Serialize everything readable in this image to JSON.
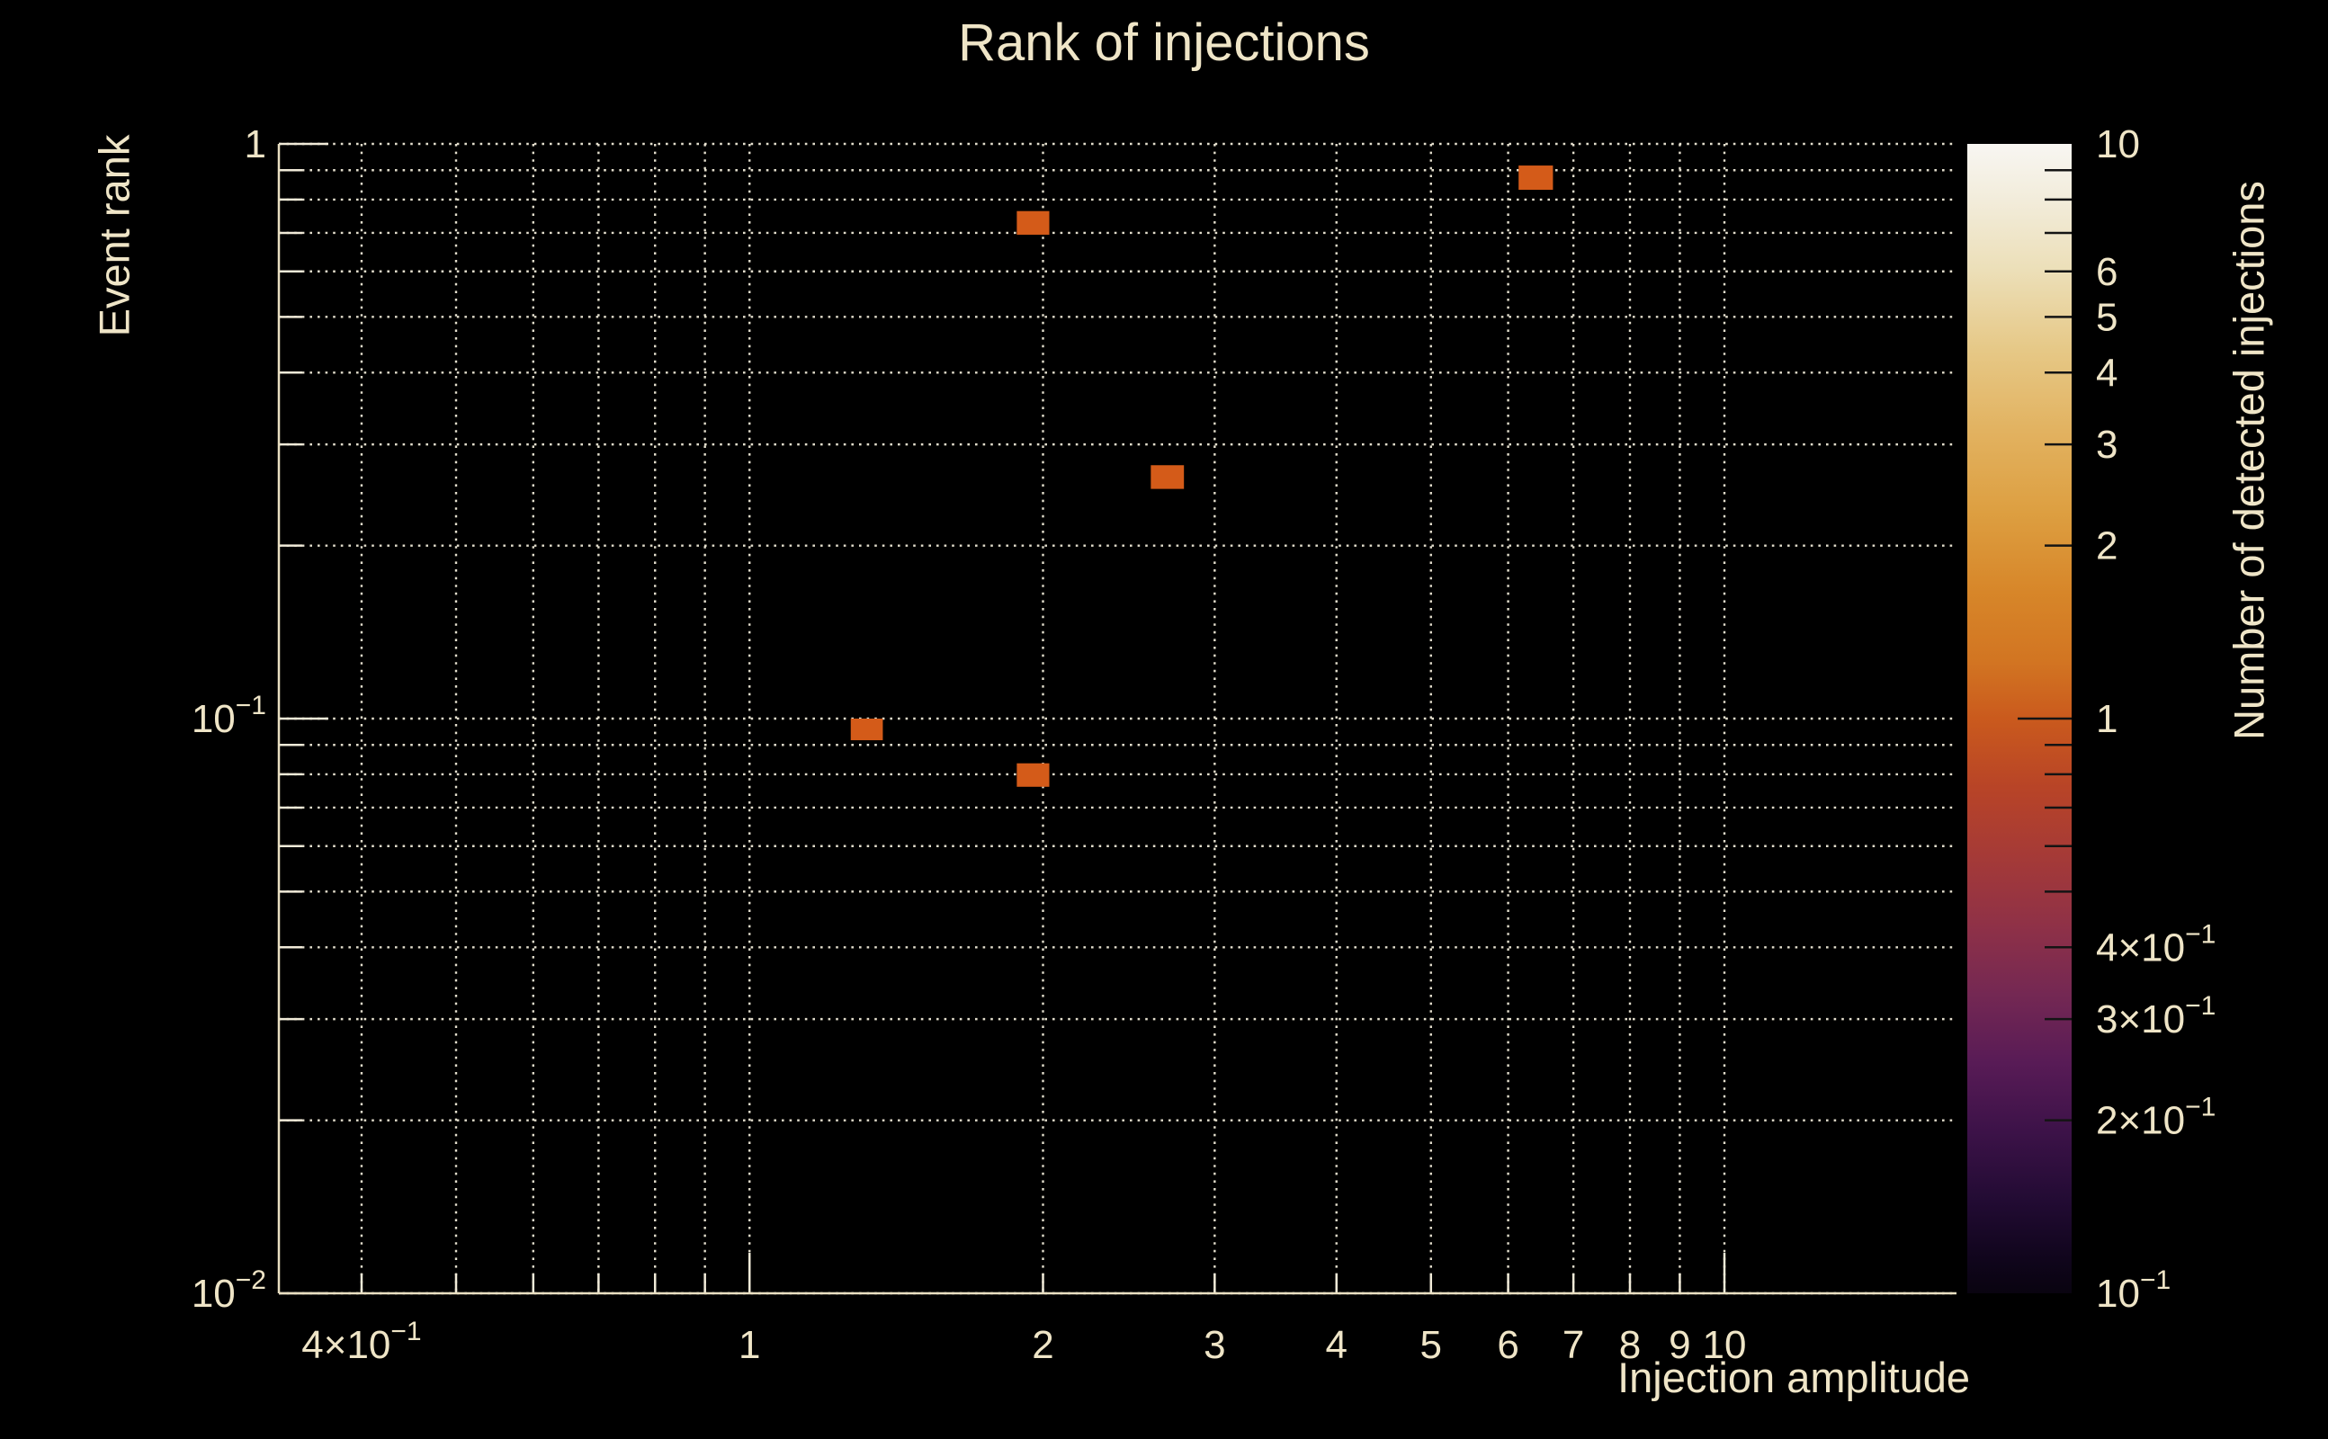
{
  "chart_data": {
    "type": "heatmap",
    "title": "Rank of injections",
    "background_color": "#000000",
    "text_color": "#efe5c7",
    "grid_color": "#f0ead8",
    "axis_color": "#e9dfc2",
    "bin_color": "#d45b19",
    "grid": true,
    "x_axis": {
      "label": "Injection amplitude",
      "scale": "log",
      "min": 0.329,
      "max": 17.3,
      "tick_labels": [
        {
          "v": 0.4,
          "m": "4×10",
          "e": "−1"
        },
        {
          "v": 1,
          "m": "1"
        },
        {
          "v": 2,
          "m": "2"
        },
        {
          "v": 3,
          "m": "3"
        },
        {
          "v": 4,
          "m": "4"
        },
        {
          "v": 5,
          "m": "5"
        },
        {
          "v": 6,
          "m": "6"
        },
        {
          "v": 7,
          "m": "7"
        },
        {
          "v": 8,
          "m": "8"
        },
        {
          "v": 9,
          "m": "9"
        },
        {
          "v": 10,
          "m": "10"
        }
      ]
    },
    "y_axis": {
      "label": "Event rank",
      "scale": "log",
      "min": 0.01,
      "max": 1,
      "tick_labels": [
        {
          "v": 1,
          "m": "1"
        },
        {
          "v": 0.1,
          "m": "10",
          "e": "−1"
        },
        {
          "v": 0.01,
          "m": "10",
          "e": "−2"
        }
      ]
    },
    "colorbar": {
      "label": "Number of detected injections",
      "scale": "log",
      "min": 0.1,
      "max": 10,
      "tick_labels": [
        {
          "v": 10,
          "m": "10"
        },
        {
          "v": 6,
          "m": "6"
        },
        {
          "v": 5,
          "m": "5"
        },
        {
          "v": 4,
          "m": "4"
        },
        {
          "v": 3,
          "m": "3"
        },
        {
          "v": 2,
          "m": "2"
        },
        {
          "v": 1,
          "m": "1"
        },
        {
          "v": 0.4,
          "m": "4×10",
          "e": "−1"
        },
        {
          "v": 0.3,
          "m": "3×10",
          "e": "−1"
        },
        {
          "v": 0.2,
          "m": "2×10",
          "e": "−1"
        },
        {
          "v": 0.1,
          "m": "10",
          "e": "−1"
        }
      ],
      "minor_tick_values": [
        9,
        8,
        7,
        0.9,
        0.8,
        0.7,
        0.6,
        0.5
      ],
      "gradient_stops": [
        [
          0.0,
          "#f8f6f2"
        ],
        [
          0.05,
          "#f2ecda"
        ],
        [
          0.11,
          "#ecdfb8"
        ],
        [
          0.18,
          "#e6c886"
        ],
        [
          0.25,
          "#e2b260"
        ],
        [
          0.32,
          "#dd9f41"
        ],
        [
          0.39,
          "#d78629"
        ],
        [
          0.45,
          "#d27522"
        ],
        [
          0.5,
          "#ca5a1d"
        ],
        [
          0.56,
          "#b84427"
        ],
        [
          0.62,
          "#a53a37"
        ],
        [
          0.68,
          "#8f3147"
        ],
        [
          0.74,
          "#742853"
        ],
        [
          0.8,
          "#581b56"
        ],
        [
          0.86,
          "#3c1248"
        ],
        [
          0.92,
          "#220b33"
        ],
        [
          0.97,
          "#10051c"
        ],
        [
          1.0,
          "#090410"
        ]
      ]
    },
    "bins": [
      {
        "x": [
          1.88,
          2.03
        ],
        "y": [
          0.695,
          0.764
        ],
        "count": 1
      },
      {
        "x": [
          6.15,
          6.67
        ],
        "y": [
          0.832,
          0.917
        ],
        "count": 1
      },
      {
        "x": [
          2.58,
          2.79
        ],
        "y": [
          0.251,
          0.276
        ],
        "count": 1
      },
      {
        "x": [
          1.27,
          1.37
        ],
        "y": [
          0.0917,
          0.1
        ],
        "count": 1
      },
      {
        "x": [
          1.88,
          2.03
        ],
        "y": [
          0.0761,
          0.0836
        ],
        "count": 1
      }
    ]
  }
}
